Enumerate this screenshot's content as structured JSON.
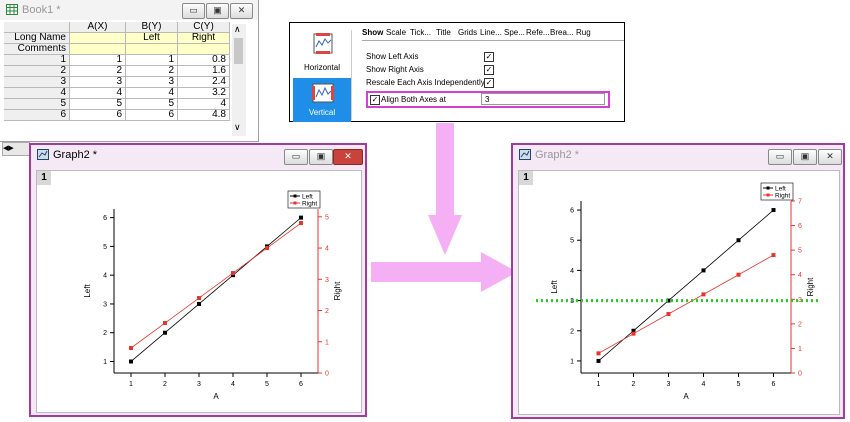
{
  "book": {
    "title": "Book1 *",
    "columns": [
      "A(X)",
      "B(Y)",
      "C(Y)"
    ],
    "meta_rows": [
      {
        "label": "Long Name",
        "a": "",
        "b": "Left",
        "c": "Right"
      },
      {
        "label": "Comments",
        "a": "",
        "b": "",
        "c": ""
      }
    ],
    "rows": [
      {
        "n": "1",
        "a": "1",
        "b": "1",
        "c": "0.8"
      },
      {
        "n": "2",
        "a": "2",
        "b": "2",
        "c": "1.6"
      },
      {
        "n": "3",
        "a": "3",
        "b": "3",
        "c": "2.4"
      },
      {
        "n": "4",
        "a": "4",
        "b": "4",
        "c": "3.2"
      },
      {
        "n": "5",
        "a": "5",
        "b": "5",
        "c": "4"
      },
      {
        "n": "6",
        "a": "6",
        "b": "6",
        "c": "4.8"
      }
    ]
  },
  "dialog": {
    "tabs": [
      "Show",
      "Scale",
      "Tick...",
      "Title",
      "Grids",
      "Line...",
      "Spe...",
      "Refe...",
      "Brea...",
      "Rug"
    ],
    "orientations": [
      "Horizontal",
      "Vertical"
    ],
    "options": [
      "Show Left Axis",
      "Show Right Axis",
      "Rescale Each Axis Independently"
    ],
    "align_label": "Align Both Axes at",
    "align_value": "3"
  },
  "graphs": [
    {
      "title": "Graph2 *",
      "layer": "1",
      "legend": [
        "Left",
        "Right"
      ],
      "xlabel": "A",
      "ylabel_left": "Left",
      "ylabel_right": "Right",
      "x_ticks": [
        "1",
        "2",
        "3",
        "4",
        "5",
        "6"
      ],
      "left_ticks": [
        "1",
        "2",
        "3",
        "4",
        "5",
        "6"
      ],
      "right_ticks": [
        "0",
        "1",
        "2",
        "3",
        "4",
        "5"
      ],
      "left_range": [
        0.6,
        6.3
      ],
      "right_range": [
        0,
        5.25
      ],
      "align_line": false
    },
    {
      "title": "Graph2 *",
      "layer": "1",
      "legend": [
        "Left",
        "Right"
      ],
      "xlabel": "A",
      "ylabel_left": "Left",
      "ylabel_right": "Right",
      "x_ticks": [
        "1",
        "2",
        "3",
        "4",
        "5",
        "6"
      ],
      "left_ticks": [
        "1",
        "2",
        "3",
        "4",
        "5",
        "6"
      ],
      "right_ticks": [
        "0",
        "1",
        "2",
        "3",
        "4",
        "5",
        "6",
        "7"
      ],
      "left_range": [
        0.6,
        6.3
      ],
      "right_range": [
        0,
        7.0
      ],
      "align_line": true
    }
  ],
  "chart_data": [
    {
      "type": "line",
      "x": [
        1,
        2,
        3,
        4,
        5,
        6
      ],
      "series": [
        {
          "name": "Left",
          "axis": "left",
          "values": [
            1,
            2,
            3,
            4,
            5,
            6
          ]
        },
        {
          "name": "Right",
          "axis": "right",
          "values": [
            0.8,
            1.6,
            2.4,
            3.2,
            4,
            4.8
          ]
        }
      ],
      "xlabel": "A",
      "ylabel": "Left",
      "ylabel_right": "Right",
      "xlim": [
        0.5,
        6.5
      ],
      "ylim": [
        0.6,
        6.3
      ],
      "ylim_right": [
        0,
        5.25
      ],
      "legend": "top-right"
    },
    {
      "type": "line",
      "x": [
        1,
        2,
        3,
        4,
        5,
        6
      ],
      "series": [
        {
          "name": "Left",
          "axis": "left",
          "values": [
            1,
            2,
            3,
            4,
            5,
            6
          ]
        },
        {
          "name": "Right",
          "axis": "right",
          "values": [
            0.8,
            1.6,
            2.4,
            3.2,
            4,
            4.8
          ]
        }
      ],
      "xlabel": "A",
      "ylabel": "Left",
      "ylabel_right": "Right",
      "xlim": [
        0.5,
        6.5
      ],
      "ylim": [
        0.6,
        6.3
      ],
      "ylim_right": [
        0,
        7.0
      ],
      "align_at": 3,
      "legend": "top-right"
    }
  ],
  "colors": {
    "left_series": "#000000",
    "right_series": "#e8342c",
    "align_line": "#22cc22",
    "window_border": "#9c2a9c",
    "highlight": "#d63fd6",
    "arrow": "#f5b0f5"
  }
}
